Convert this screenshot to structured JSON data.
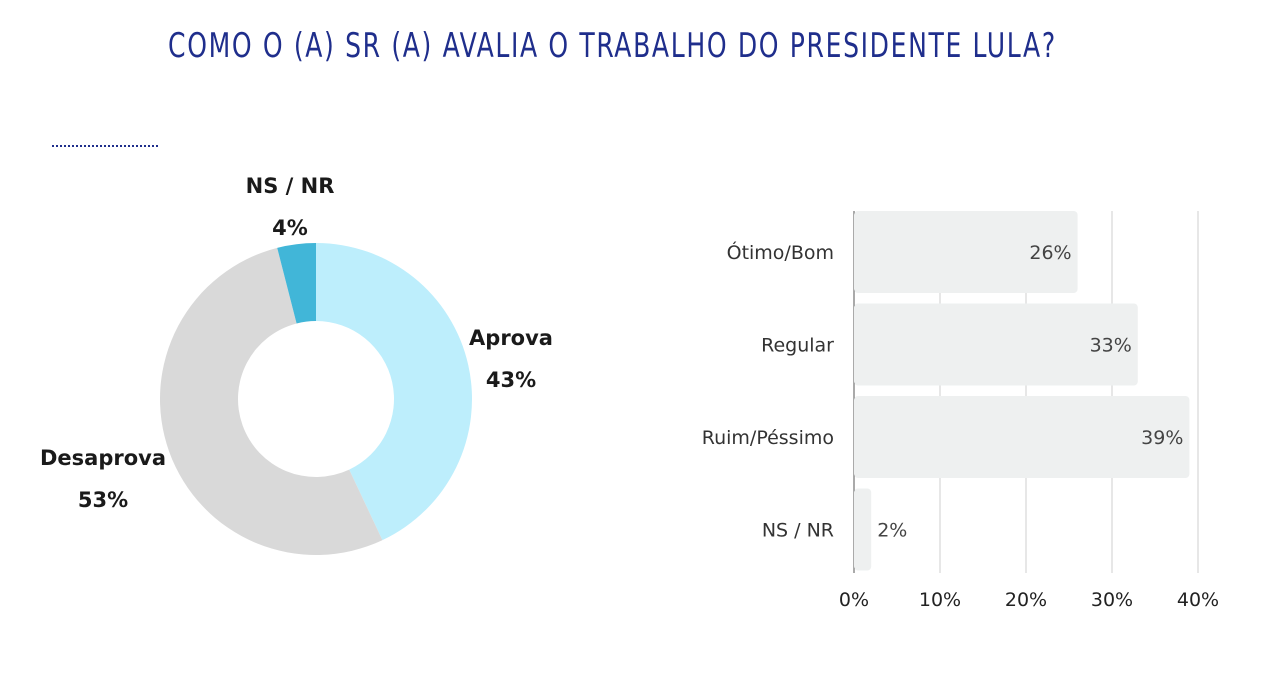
{
  "title": "COMO O (A) SR (A) AVALIA O TRABALHO DO PRESIDENTE LULA?",
  "chart_data": [
    {
      "type": "pie",
      "variant": "donut",
      "slices": [
        {
          "label": "Aprova",
          "value": 43,
          "display": "43%",
          "color": "#bdeefc"
        },
        {
          "label": "Desaprova",
          "value": 53,
          "display": "53%",
          "color": "#d9d9d9"
        },
        {
          "label": "NS / NR",
          "value": 4,
          "display": "4%",
          "color": "#41b6d8"
        }
      ]
    },
    {
      "type": "bar",
      "orientation": "horizontal",
      "categories": [
        "Ótimo/Bom",
        "Regular",
        "Ruim/Péssimo",
        "NS / NR"
      ],
      "values": [
        26,
        33,
        39,
        2
      ],
      "value_labels": [
        "26%",
        "33%",
        "39%",
        "2%"
      ],
      "xlim": [
        0,
        40
      ],
      "xticks": [
        "0%",
        "10%",
        "20%",
        "30%",
        "40%"
      ],
      "grid": true,
      "bar_color": "#eef0f0"
    }
  ]
}
